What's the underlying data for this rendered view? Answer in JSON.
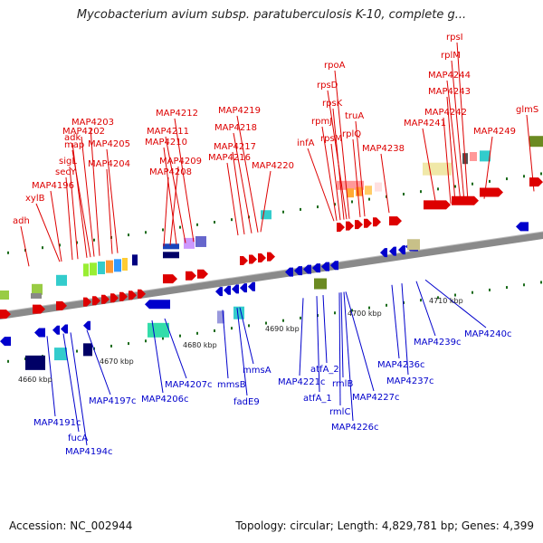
{
  "title": "Mycobacterium avium subsp. paratuberculosis K-10, complete g...",
  "footer": {
    "accession_label": "Accession: NC_002944",
    "stats": "Topology: circular; Length: 4,829,781 bp; Genes: 4,399"
  },
  "colors": {
    "forward": "#dd0000",
    "reverse": "#0000cc",
    "backbone": "#7f7f7f"
  },
  "ticks": [
    "4660 kbp",
    "4670 kbp",
    "4680 kbp",
    "4690 kbp",
    "4700 kbp",
    "4710 kbp"
  ],
  "forward_genes": [
    "adh",
    "xylB",
    "MAP4196",
    "secY",
    "sigL",
    "adk",
    "map",
    "MAP4202",
    "MAP4203",
    "MAP4204",
    "MAP4205",
    "MAP4208",
    "MAP4209",
    "MAP4210",
    "MAP4211",
    "MAP4212",
    "MAP4216",
    "MAP4217",
    "MAP4218",
    "MAP4219",
    "MAP4220",
    "infA",
    "rpmJ",
    "rpsM",
    "rpsK",
    "rpsD",
    "rpoA",
    "rplQ",
    "truA",
    "MAP4238",
    "MAP4241",
    "MAP4242",
    "MAP4243",
    "MAP4244",
    "rplM",
    "rpsI",
    "MAP4249",
    "glmS"
  ],
  "reverse_genes": [
    "MAP4191c",
    "fucA",
    "MAP4194c",
    "MAP4197c",
    "MAP4206c",
    "MAP4207c",
    "mmsB",
    "fadE9",
    "mmsA",
    "MAP4221c",
    "atfA_1",
    "atfA_2",
    "rmlC",
    "rmlB",
    "MAP4226c",
    "MAP4227c",
    "MAP4236c",
    "MAP4237c",
    "MAP4239c",
    "MAP4240c"
  ]
}
